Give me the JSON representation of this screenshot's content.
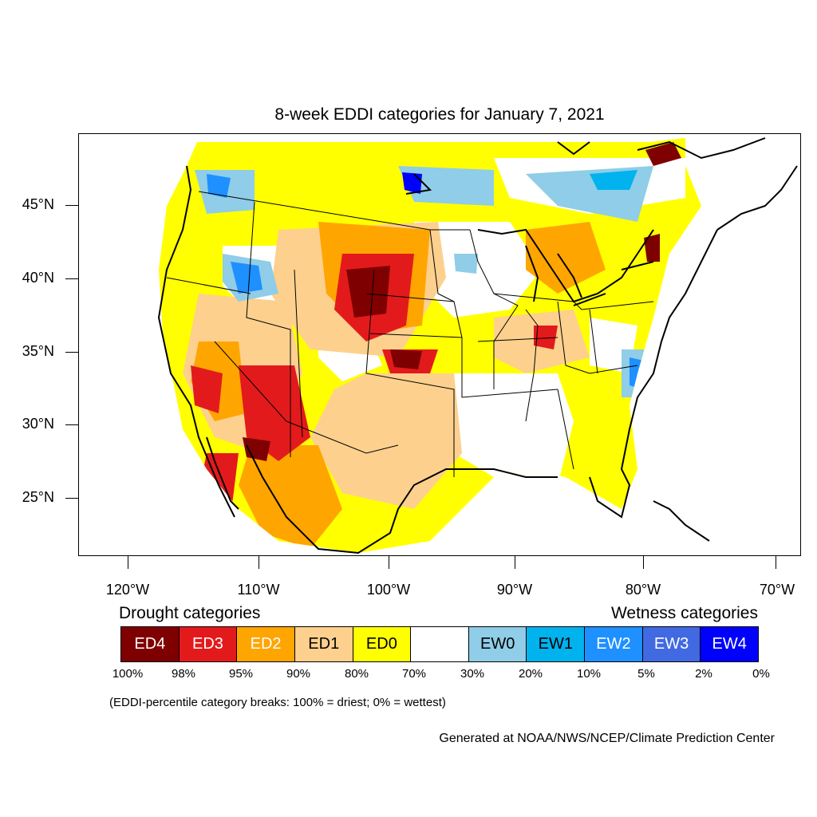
{
  "title": "8-week EDDI categories for January 7, 2021",
  "lat_labels": [
    "45°N",
    "40°N",
    "35°N",
    "30°N",
    "25°N"
  ],
  "lon_labels": [
    "120°W",
    "110°W",
    "100°W",
    "90°W",
    "80°W",
    "70°W"
  ],
  "legend": {
    "drought_heading": "Drought categories",
    "wetness_heading": "Wetness categories",
    "categories": [
      {
        "label": "ED4",
        "color": "#7f0000",
        "text_color": "#ffffff"
      },
      {
        "label": "ED3",
        "color": "#e31a1c",
        "text_color": "#ffffff"
      },
      {
        "label": "ED2",
        "color": "#ffa500",
        "text_color": "#ffffff"
      },
      {
        "label": "ED1",
        "color": "#fdd08e",
        "text_color": "#000000"
      },
      {
        "label": "ED0",
        "color": "#ffff00",
        "text_color": "#000000"
      },
      {
        "label": "",
        "color": "#ffffff",
        "text_color": "#000000"
      },
      {
        "label": "EW0",
        "color": "#8fcde8",
        "text_color": "#000000"
      },
      {
        "label": "EW1",
        "color": "#00b2ee",
        "text_color": "#000000"
      },
      {
        "label": "EW2",
        "color": "#1e90ff",
        "text_color": "#ffffff"
      },
      {
        "label": "EW3",
        "color": "#4169e1",
        "text_color": "#ffffff"
      },
      {
        "label": "EW4",
        "color": "#0000ff",
        "text_color": "#ffffff"
      }
    ],
    "breaks": [
      "100%",
      "98%",
      "95%",
      "90%",
      "80%",
      "70%",
      "30%",
      "20%",
      "10%",
      "5%",
      "2%",
      "0%"
    ]
  },
  "note": "(EDDI-percentile category breaks: 100% = driest; 0% = wettest)",
  "credit": "Generated at NOAA/NWS/NCEP/Climate Prediction Center"
}
